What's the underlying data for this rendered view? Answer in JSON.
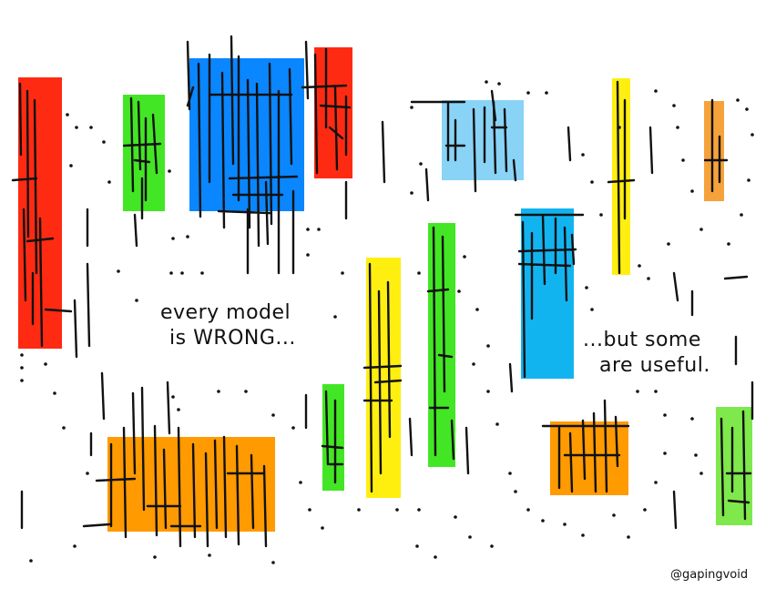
{
  "caption_left": {
    "line1": "every model",
    "line2": "is WRONG..."
  },
  "caption_right": {
    "line1": "...but some",
    "line2": "are useful."
  },
  "signature": "@gapingvoid",
  "colors": {
    "red": "#ff2a12",
    "green": "#43e624",
    "blue": "#0a86ff",
    "light_blue": "#89d3f6",
    "sky_blue": "#12b4f0",
    "yellow": "#ffef10",
    "orange": "#ff9a00",
    "orange_small": "#f6a23a",
    "lime": "#7fe84c",
    "ink": "#111111"
  }
}
